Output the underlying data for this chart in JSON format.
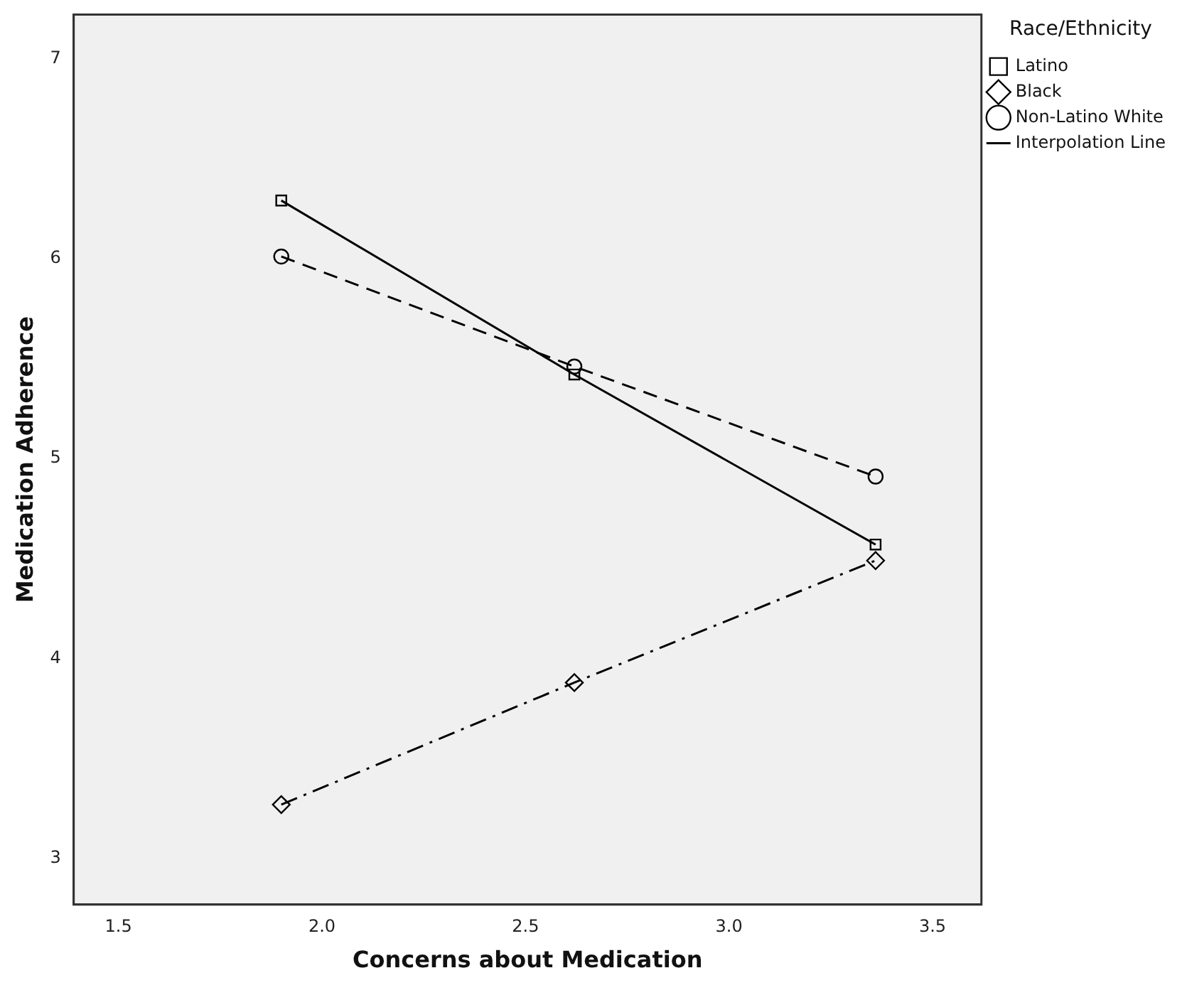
{
  "chart_data": {
    "type": "line",
    "xlabel": "Concerns about Medication",
    "ylabel": "Medication Adherence",
    "legend_title": "Race/Ethnicity",
    "legend": "right",
    "grid": false,
    "x": [
      1.9,
      2.62,
      3.36
    ],
    "xlim": [
      1.39,
      3.62
    ],
    "xticks": [
      1.5,
      {
        "value": 2,
        "label": "2.0"
      },
      2.5,
      {
        "value": 3,
        "label": "3.0"
      },
      3.5
    ],
    "ylim": [
      2.77,
      7.22
    ],
    "yticks": [
      3,
      4,
      5,
      6,
      7
    ],
    "series": [
      {
        "name": "Latino",
        "color": "#000000",
        "marker": "square",
        "line_style": "solid",
        "values": [
          6.29,
          5.42,
          4.57
        ]
      },
      {
        "name": "Black",
        "color": "#000000",
        "marker": "diamond",
        "line_style": "dashdot",
        "values": [
          3.27,
          3.88,
          4.49
        ]
      },
      {
        "name": "Non-Latino White",
        "color": "#000000",
        "marker": "circle",
        "line_style": "dashed",
        "values": [
          6.01,
          5.46,
          4.91
        ]
      }
    ],
    "annotations": [
      "Interpolation Line"
    ]
  }
}
